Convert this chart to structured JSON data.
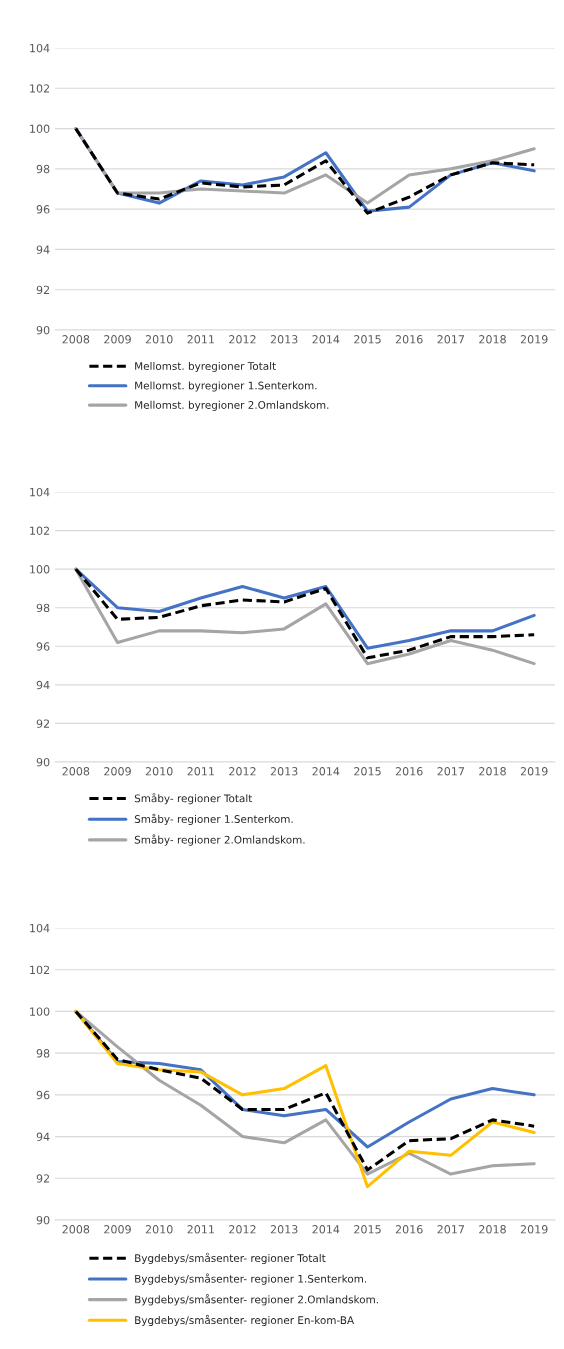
{
  "chart_data": [
    {
      "type": "line",
      "categories": [
        "2008",
        "2009",
        "2010",
        "2011",
        "2012",
        "2013",
        "2014",
        "2015",
        "2016",
        "2017",
        "2018",
        "2019"
      ],
      "ylim": [
        90,
        104
      ],
      "yticks": [
        90,
        92,
        94,
        96,
        98,
        100,
        102,
        104
      ],
      "grid": "y",
      "legend": "bottom",
      "series": [
        {
          "name": "Mellomst. byregioner Totalt",
          "color": "#000000",
          "line_style": "dashed",
          "values": [
            100,
            96.8,
            96.5,
            97.3,
            97.1,
            97.2,
            98.4,
            95.8,
            96.6,
            97.7,
            98.3,
            98.2
          ]
        },
        {
          "name": "Mellomst. byregioner 1.Senterkom.",
          "color": "#4472c4",
          "line_style": "solid",
          "values": [
            100,
            96.8,
            96.3,
            97.4,
            97.2,
            97.6,
            98.8,
            95.9,
            96.1,
            97.7,
            98.3,
            97.9
          ]
        },
        {
          "name": "Mellomst. byregioner 2.Omlandskom.",
          "color": "#a5a5a5",
          "line_style": "solid",
          "values": [
            100,
            96.8,
            96.8,
            97.0,
            96.9,
            96.8,
            97.7,
            96.3,
            97.7,
            98.0,
            98.4,
            99.0
          ]
        }
      ]
    },
    {
      "type": "line",
      "categories": [
        "2008",
        "2009",
        "2010",
        "2011",
        "2012",
        "2013",
        "2014",
        "2015",
        "2016",
        "2017",
        "2018",
        "2019"
      ],
      "ylim": [
        90,
        104
      ],
      "yticks": [
        90,
        92,
        94,
        96,
        98,
        100,
        102,
        104
      ],
      "grid": "y",
      "legend": "bottom",
      "series": [
        {
          "name": "Småby- regioner Totalt",
          "color": "#000000",
          "line_style": "dashed",
          "values": [
            100,
            97.4,
            97.5,
            98.1,
            98.4,
            98.3,
            99.0,
            95.4,
            95.8,
            96.5,
            96.5,
            96.6
          ]
        },
        {
          "name": "Småby- regioner 1.Senterkom.",
          "color": "#4472c4",
          "line_style": "solid",
          "values": [
            100,
            98.0,
            97.8,
            98.5,
            99.1,
            98.5,
            99.1,
            95.9,
            96.3,
            96.8,
            96.8,
            97.6
          ]
        },
        {
          "name": "Småby- regioner 2.Omlandskom.",
          "color": "#a5a5a5",
          "line_style": "solid",
          "values": [
            100,
            96.2,
            96.8,
            96.8,
            96.7,
            96.9,
            98.2,
            95.1,
            95.6,
            96.3,
            95.8,
            95.1
          ]
        }
      ]
    },
    {
      "type": "line",
      "categories": [
        "2008",
        "2009",
        "2010",
        "2011",
        "2012",
        "2013",
        "2014",
        "2015",
        "2016",
        "2017",
        "2018",
        "2019"
      ],
      "ylim": [
        90,
        104
      ],
      "yticks": [
        90,
        92,
        94,
        96,
        98,
        100,
        102,
        104
      ],
      "grid": "y",
      "legend": "bottom",
      "series": [
        {
          "name": "Bygdebys/småsenter- regioner Totalt",
          "color": "#000000",
          "line_style": "dashed",
          "values": [
            100,
            97.7,
            97.2,
            96.8,
            95.3,
            95.3,
            96.1,
            92.4,
            93.8,
            93.9,
            94.8,
            94.5
          ]
        },
        {
          "name": "Bygdebys/småsenter- regioner 1.Senterkom.",
          "color": "#4472c4",
          "line_style": "solid",
          "values": [
            100,
            97.6,
            97.5,
            97.2,
            95.3,
            95.0,
            95.3,
            93.5,
            94.7,
            95.8,
            96.3,
            96.0
          ]
        },
        {
          "name": "Bygdebys/småsenter- regioner 2.Omlandskom.",
          "color": "#a5a5a5",
          "line_style": "solid",
          "values": [
            100,
            98.3,
            96.7,
            95.5,
            94.0,
            93.7,
            94.8,
            92.2,
            93.2,
            92.2,
            92.6,
            92.7
          ]
        },
        {
          "name": "Bygdebys/småsenter- regioner En-kom-BA",
          "color": "#ffc000",
          "line_style": "solid",
          "values": [
            100,
            97.5,
            97.2,
            97.1,
            96.0,
            96.3,
            97.4,
            91.6,
            93.3,
            93.1,
            94.7,
            94.2
          ]
        }
      ]
    }
  ]
}
